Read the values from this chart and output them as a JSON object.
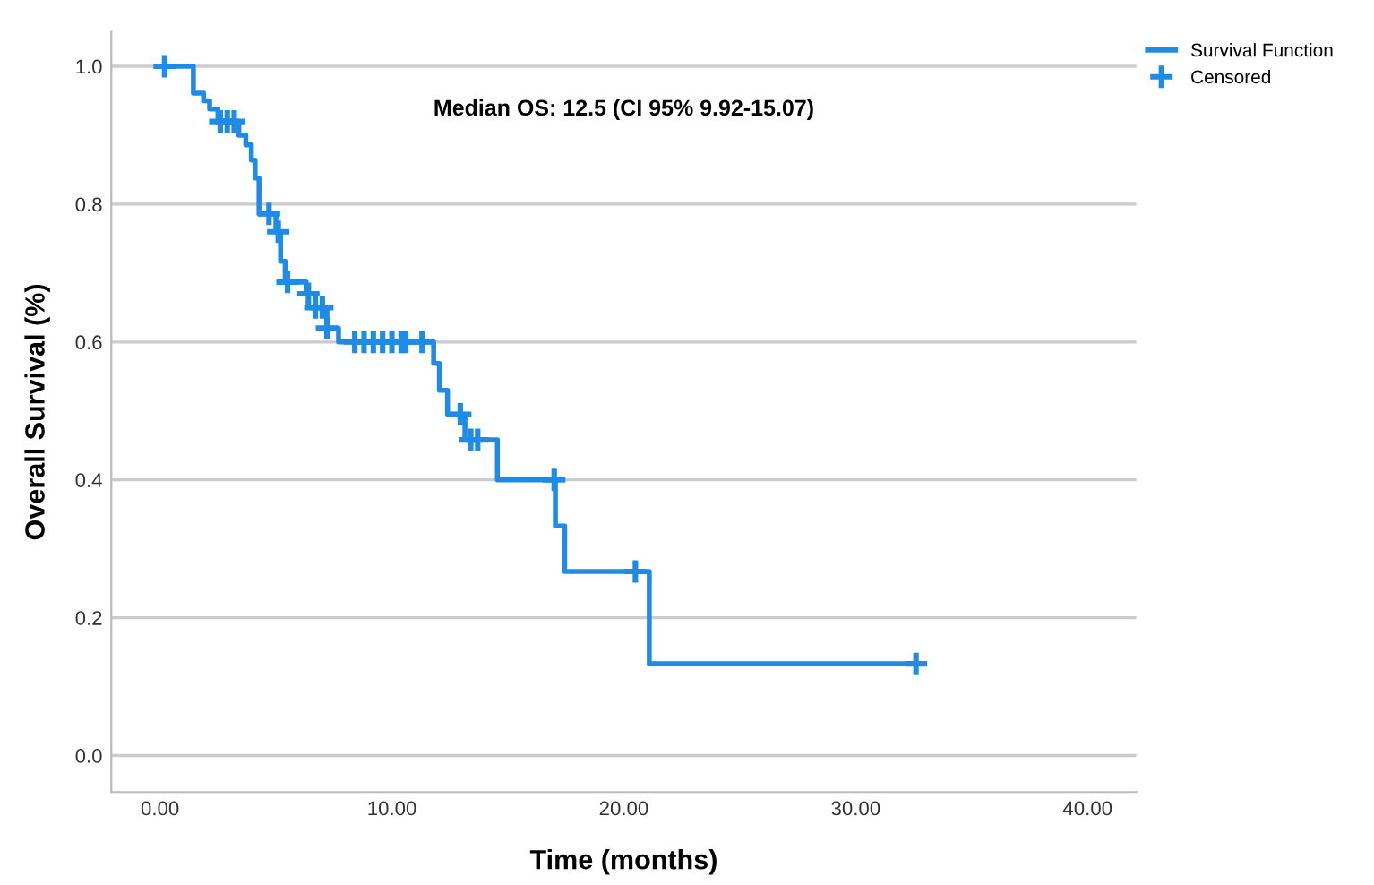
{
  "chart_data": {
    "type": "step",
    "xlabel": "Time (months)",
    "ylabel": "Overall Survival (%)",
    "annotations": [
      "Median OS: 12.5 (CI 95% 9.92-15.07)"
    ],
    "series": [
      {
        "name": "Survival Function",
        "color": "#1f8be6",
        "x": [
          0.2,
          1.44,
          1.88,
          2.14,
          2.5,
          3.4,
          3.7,
          3.94,
          4.1,
          4.27,
          5.0,
          5.2,
          5.4,
          6.3,
          6.7,
          7.2,
          7.7,
          11.8,
          12.05,
          12.4,
          13.15,
          14.55,
          17.05,
          17.45,
          21.1,
          32.6
        ],
        "values": [
          1.0,
          0.961,
          0.95,
          0.938,
          0.92,
          0.9,
          0.886,
          0.864,
          0.838,
          0.786,
          0.76,
          0.717,
          0.687,
          0.67,
          0.65,
          0.62,
          0.6,
          0.569,
          0.53,
          0.495,
          0.458,
          0.4,
          0.333,
          0.267,
          0.133,
          0.133
        ]
      },
      {
        "name": "Censored",
        "type": "scatter",
        "marker": "cross",
        "color": "#1f8be6",
        "x": [
          0.2,
          2.6,
          2.9,
          3.2,
          4.7,
          5.1,
          5.5,
          6.4,
          6.7,
          7.0,
          7.2,
          8.4,
          8.8,
          9.2,
          9.6,
          10.0,
          10.4,
          10.6,
          11.3,
          12.95,
          13.4,
          13.7,
          17.0,
          20.5,
          32.6
        ],
        "values": [
          1.0,
          0.92,
          0.92,
          0.92,
          0.786,
          0.76,
          0.687,
          0.67,
          0.65,
          0.65,
          0.62,
          0.6,
          0.6,
          0.6,
          0.6,
          0.6,
          0.6,
          0.6,
          0.6,
          0.495,
          0.458,
          0.458,
          0.4,
          0.267,
          0.133
        ]
      }
    ],
    "xlim": [
      -2.1,
      42.1
    ],
    "ylim": [
      -0.053,
      1.05
    ],
    "xticks": [
      {
        "value": 0,
        "label": "0.00"
      },
      {
        "value": 10,
        "label": "10.00"
      },
      {
        "value": 20,
        "label": "20.00"
      },
      {
        "value": 30,
        "label": "30.00"
      },
      {
        "value": 40,
        "label": "40.00"
      }
    ],
    "yticks": [
      {
        "value": 0,
        "label": "0.0"
      },
      {
        "value": 0.2,
        "label": "0.2"
      },
      {
        "value": 0.4,
        "label": "0.4"
      },
      {
        "value": 0.6,
        "label": "0.6"
      },
      {
        "value": 0.8,
        "label": "0.8"
      },
      {
        "value": 1.0,
        "label": "1.0"
      }
    ],
    "grid": "y",
    "legend": "top right"
  }
}
